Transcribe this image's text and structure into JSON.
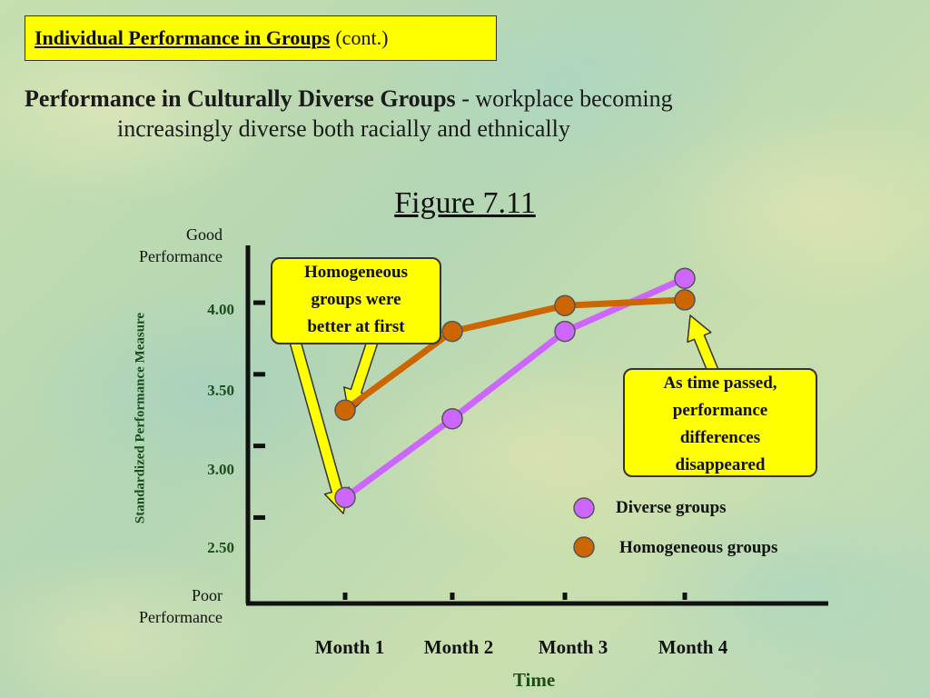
{
  "slide": {
    "title": "Individual Performance in Groups",
    "title_suffix": "(cont.)",
    "heading_bold": "Performance in Culturally Diverse Groups",
    "heading_rest": " - workplace becoming",
    "heading_line2": "increasingly diverse both racially and ethnically",
    "figure_title": "Figure 7.11"
  },
  "callouts": {
    "left": [
      "Homogeneous",
      "groups were",
      "better at first"
    ],
    "right": [
      "As time passed,",
      "performance",
      "differences",
      "disappeared"
    ]
  },
  "chart_data": {
    "type": "line",
    "categories": [
      "Month 1",
      "Month 2",
      "Month 3",
      "Month 4"
    ],
    "xlabel": "Time",
    "ylabel": "Standardized Performance Measure",
    "y_top_label": [
      "Good",
      "Performance"
    ],
    "y_bottom_label": [
      "Poor",
      "Performance"
    ],
    "y_ticks": [
      2.5,
      3.0,
      3.5,
      4.0
    ],
    "y_tick_labels": [
      "2.50",
      "3.00",
      "3.50",
      "4.00"
    ],
    "ylim": [
      1.9,
      4.4
    ],
    "legend_position": "right",
    "series": [
      {
        "name": "Diverse groups",
        "values": [
          2.64,
          3.19,
          3.8,
          4.17
        ],
        "color": "#cc66ff"
      },
      {
        "name": "Homogeneous groups",
        "values": [
          3.25,
          3.8,
          3.98,
          4.02
        ],
        "color": "#cc6600"
      }
    ]
  },
  "colors": {
    "callout": "#ffff00",
    "axis": "#111111",
    "axis_text": "#1a4d1a"
  }
}
